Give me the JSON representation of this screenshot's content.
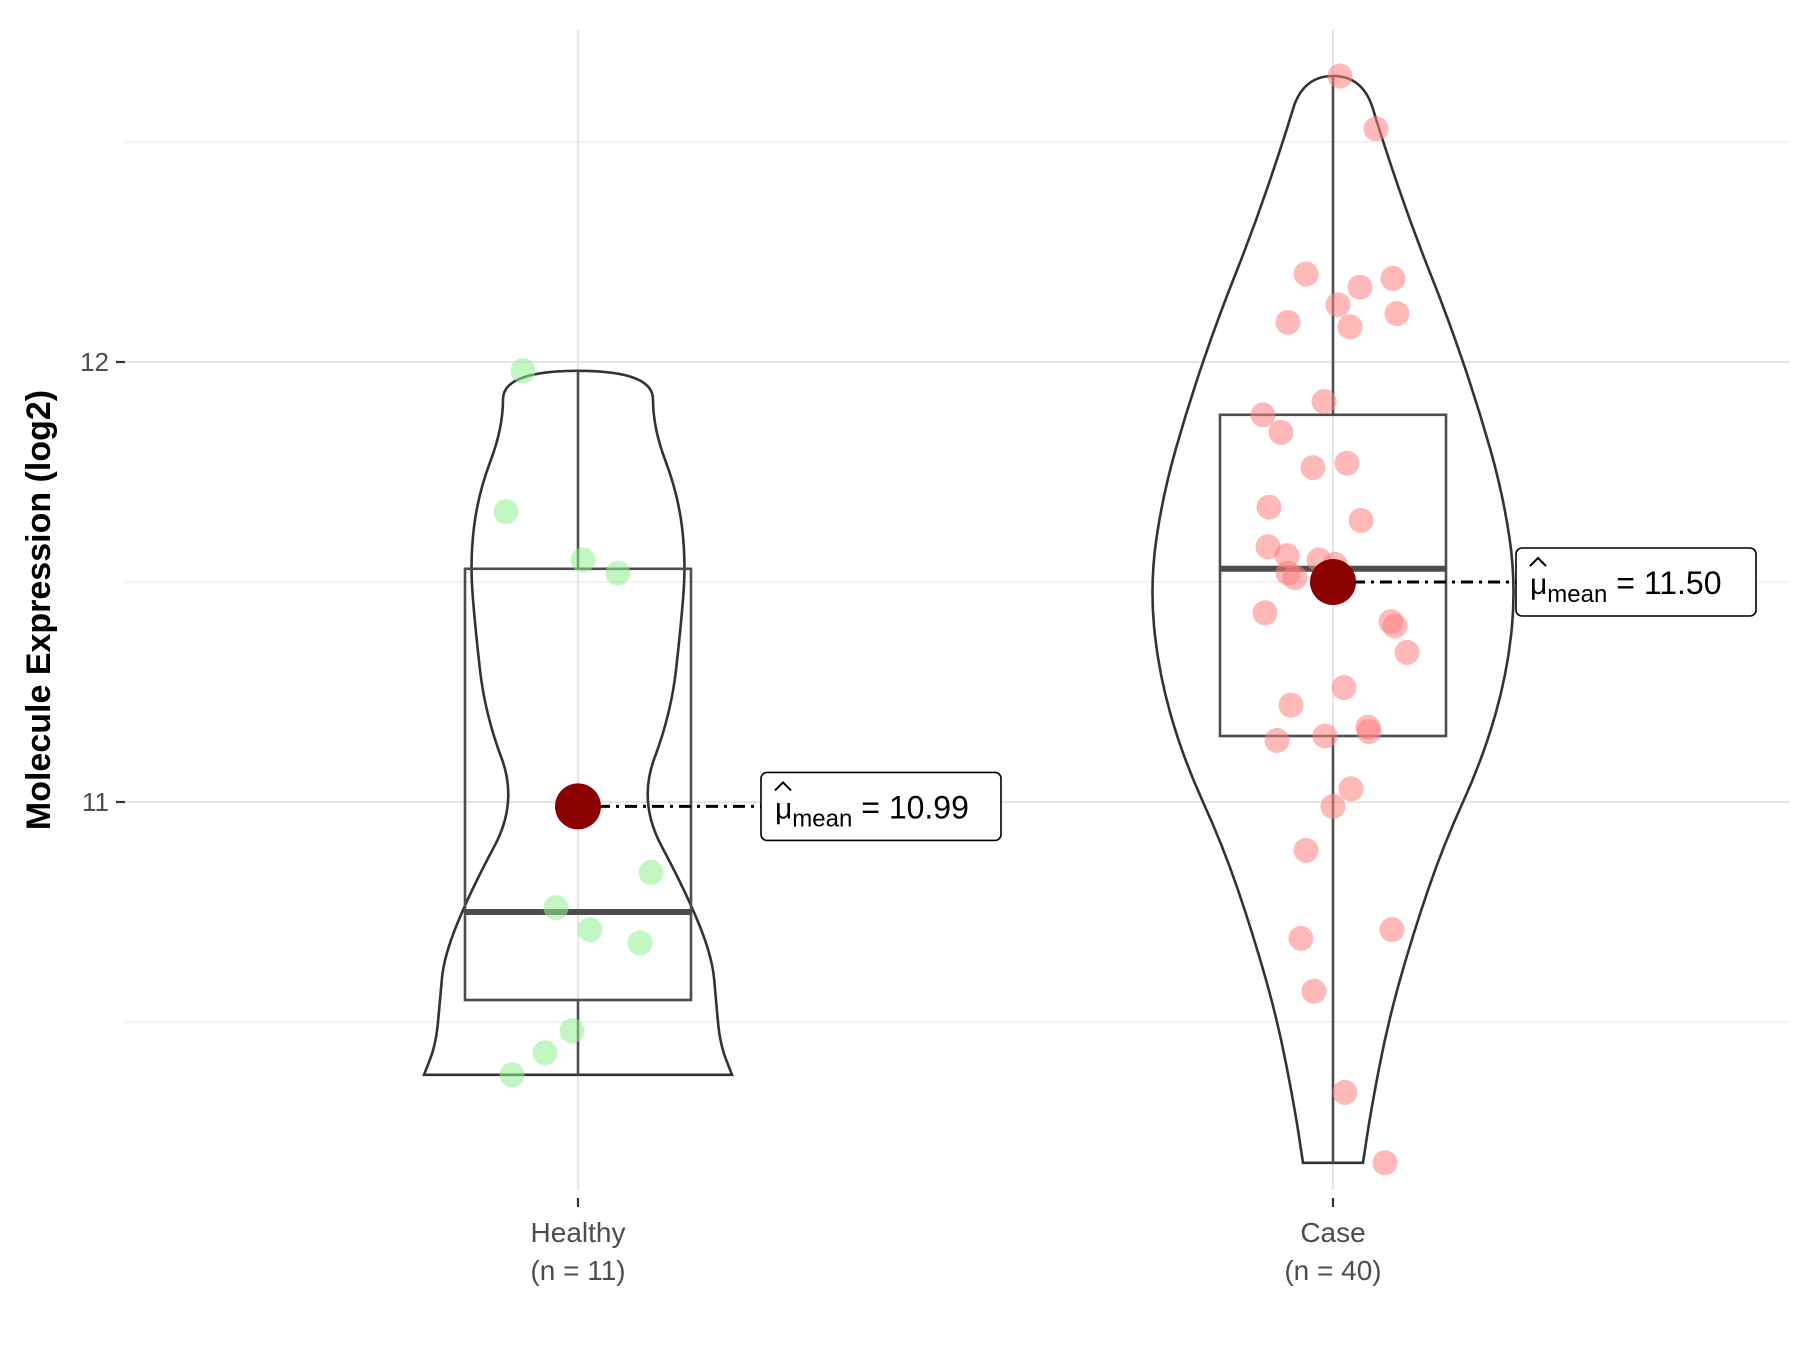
{
  "chart_data": {
    "type": "violin",
    "ylabel": "Molecule Expression (log2)",
    "xlabel": "",
    "ylim": [
      10.1,
      12.8
    ],
    "yticks": [
      11,
      12
    ],
    "grid": true,
    "groups": [
      {
        "name": "Healthy",
        "n_label": "(n = 11)",
        "color": "#90ee90",
        "points": [
          11.98,
          11.66,
          11.55,
          11.52,
          10.84,
          10.76,
          10.71,
          10.68,
          10.48,
          10.43,
          10.38
        ],
        "box": {
          "min": 10.38,
          "q1": 10.55,
          "median": 10.75,
          "q3": 11.53,
          "max": 11.98
        },
        "mean": 10.99,
        "mean_label": "10.99"
      },
      {
        "name": "Case",
        "n_label": "(n = 40)",
        "color": "#ff7f7f",
        "points": [
          12.65,
          12.53,
          12.2,
          12.19,
          12.17,
          12.13,
          12.11,
          12.09,
          12.08,
          11.91,
          11.88,
          11.84,
          11.77,
          11.76,
          11.67,
          11.64,
          11.58,
          11.56,
          11.55,
          11.54,
          11.52,
          11.51,
          11.43,
          11.41,
          11.4,
          11.34,
          11.26,
          11.22,
          11.17,
          11.16,
          11.15,
          11.14,
          11.03,
          10.99,
          10.89,
          10.71,
          10.69,
          10.57,
          10.34,
          10.18
        ],
        "box": {
          "min": 10.18,
          "q1": 11.15,
          "median": 11.53,
          "q3": 11.88,
          "max": 12.65
        },
        "mean": 11.5,
        "mean_label": "11.50"
      }
    ]
  },
  "colors": {
    "mean_point": "#8b0000"
  }
}
